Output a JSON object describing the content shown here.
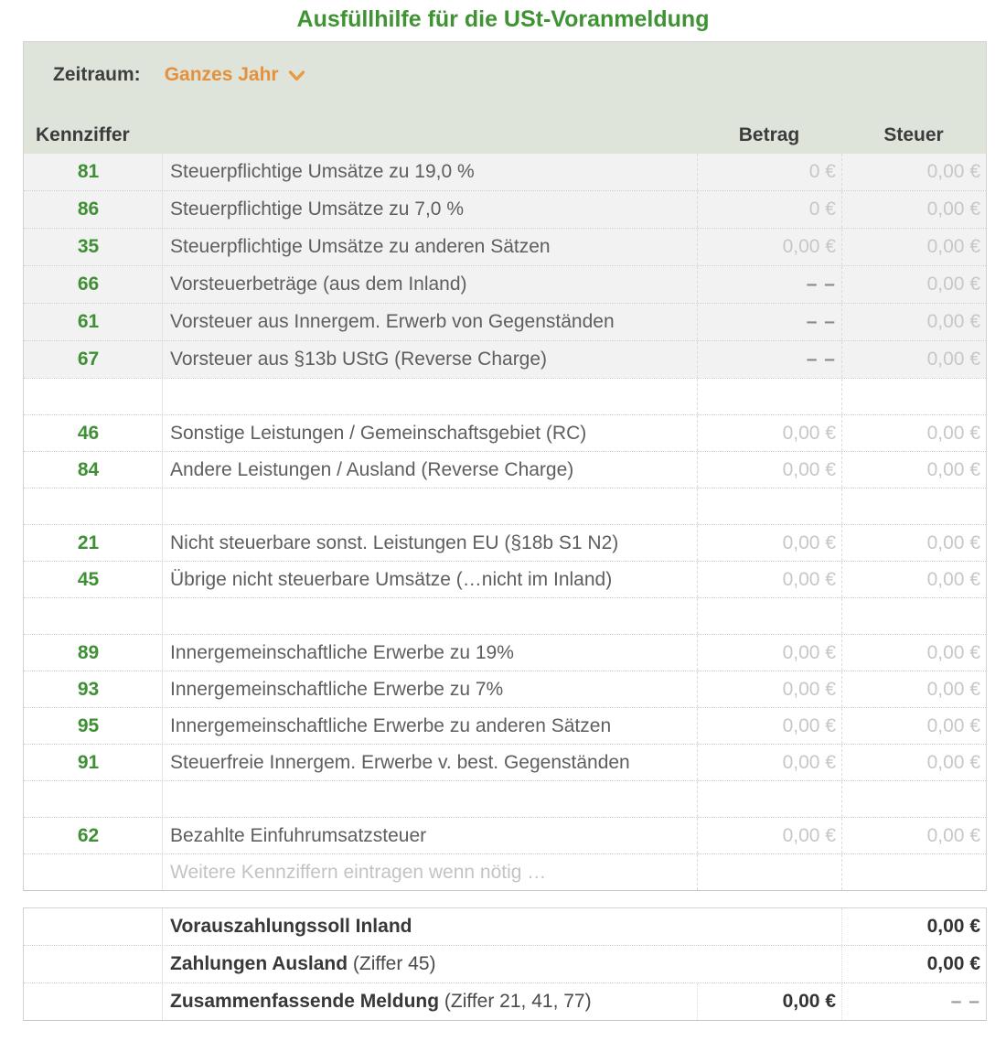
{
  "title": "Ausfüllhilfe für die USt-Voranmeldung",
  "colors": {
    "title_green": "#3f9333",
    "code_green": "#3f8f35",
    "accent_orange": "#e5913c",
    "band_bg": "#dee4d9",
    "shade_bg": "#f2f2f2"
  },
  "period": {
    "label": "Zeitraum:",
    "value": "Ganzes Jahr",
    "icon": "chevron-down"
  },
  "main_table": {
    "headers": {
      "kennziffer": "Kennziffer",
      "betrag": "Betrag",
      "steuer": "Steuer"
    },
    "rows": [
      {
        "type": "data",
        "block": "shaded",
        "code": "81",
        "label": "Steuerpflichtige Umsätze zu 19,0 %",
        "betrag": "0 €",
        "steuer": "0,00 €"
      },
      {
        "type": "data",
        "block": "shaded",
        "code": "86",
        "label": "Steuerpflichtige Umsätze zu 7,0 %",
        "betrag": "0 €",
        "steuer": "0,00 €"
      },
      {
        "type": "data",
        "block": "shaded",
        "code": "35",
        "label": "Steuerpflichtige Umsätze zu anderen Sätzen",
        "betrag": "0,00 €",
        "steuer": "0,00 €"
      },
      {
        "type": "data",
        "block": "shaded",
        "code": "66",
        "label": "Vorsteuerbeträge (aus dem Inland)",
        "betrag": "– –",
        "steuer": "0,00 €"
      },
      {
        "type": "data",
        "block": "shaded",
        "code": "61",
        "label": "Vorsteuer aus Innergem. Erwerb von Gegenständen",
        "betrag": "– –",
        "steuer": "0,00 €"
      },
      {
        "type": "data",
        "block": "shaded",
        "code": "67",
        "label": "Vorsteuer aus §13b UStG (Reverse Charge)",
        "betrag": "– –",
        "steuer": "0,00 €"
      },
      {
        "type": "empty",
        "code": "",
        "label": "",
        "betrag": "",
        "steuer": ""
      },
      {
        "type": "data",
        "code": "46",
        "label": "Sonstige Leistungen / Gemeinschaftsgebiet (RC)",
        "betrag": "0,00 €",
        "steuer": "0,00 €"
      },
      {
        "type": "data",
        "code": "84",
        "label": "Andere Leistungen / Ausland (Reverse Charge)",
        "betrag": "0,00 €",
        "steuer": "0,00 €"
      },
      {
        "type": "empty",
        "code": "",
        "label": "",
        "betrag": "",
        "steuer": ""
      },
      {
        "type": "data",
        "code": "21",
        "label": "Nicht steuerbare sonst. Leistungen EU (§18b S1 N2)",
        "betrag": "0,00 €",
        "steuer": "0,00 €"
      },
      {
        "type": "data",
        "code": "45",
        "label": "Übrige nicht steuerbare Umsätze (…nicht im Inland)",
        "betrag": "0,00 €",
        "steuer": "0,00 €"
      },
      {
        "type": "empty",
        "code": "",
        "label": "",
        "betrag": "",
        "steuer": ""
      },
      {
        "type": "data",
        "code": "89",
        "label": "Innergemeinschaftliche Erwerbe zu 19%",
        "betrag": "0,00 €",
        "steuer": "0,00 €"
      },
      {
        "type": "data",
        "code": "93",
        "label": "Innergemeinschaftliche Erwerbe zu 7%",
        "betrag": "0,00 €",
        "steuer": "0,00 €"
      },
      {
        "type": "data",
        "code": "95",
        "label": "Innergemeinschaftliche Erwerbe zu anderen Sätzen",
        "betrag": "0,00 €",
        "steuer": "0,00 €"
      },
      {
        "type": "data",
        "code": "91",
        "label": "Steuerfreie Innergem. Erwerbe v. best. Gegenständen",
        "betrag": "0,00 €",
        "steuer": "0,00 €"
      },
      {
        "type": "empty",
        "code": "",
        "label": "",
        "betrag": "",
        "steuer": ""
      },
      {
        "type": "data",
        "code": "62",
        "label": "Bezahlte Einfuhrumsatzsteuer",
        "betrag": "0,00 €",
        "steuer": "0,00 €"
      },
      {
        "type": "placeholder",
        "code": "",
        "label": "Weitere Kennziffern eintragen wenn nötig …",
        "betrag": "",
        "steuer": ""
      }
    ]
  },
  "summary_table": {
    "rows": [
      {
        "label_bold": "Vorauszahlungssoll Inland",
        "label_note": "",
        "betrag": "",
        "steuer": "0,00 €",
        "merged": true
      },
      {
        "label_bold": "Zahlungen Ausland",
        "label_note": " (Ziffer 45)",
        "betrag": "",
        "steuer": "0,00 €",
        "merged": true
      },
      {
        "label_bold": "Zusammenfassende Meldung",
        "label_note": " (Ziffer 21, 41, 77)",
        "betrag": "0,00 €",
        "steuer": "– –",
        "merged": false
      }
    ]
  }
}
